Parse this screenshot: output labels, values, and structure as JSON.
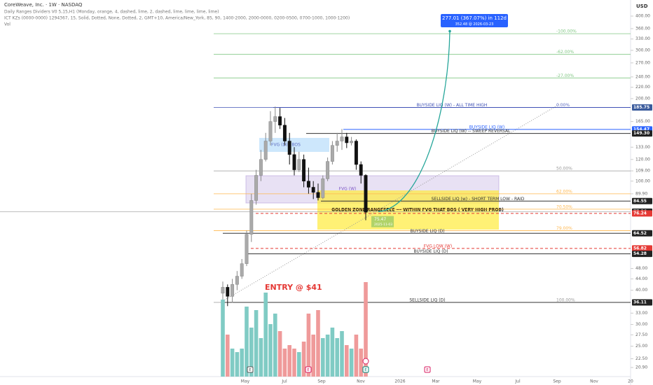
{
  "chart_data": {
    "type": "candlestick",
    "title": "CoreWeave, Inc. · 1W · NASDAQ",
    "indicators": [
      "Daily Ranges Dividers V0 5,15,H1 (Monday, orange, 4, dashed, lime, 2, dashed, lime, lime, lime, lime)",
      "ICT KZs (0000-0000) 1294367, 15, Solid, Dotted, None, Dotted, 2, GMT+10, America/New_York, 85, 90, 1400-2000, 2000-0000, 0200-0500, 0700-1000, 1000-1200)",
      "Vol"
    ],
    "currency": "USD",
    "log_scale": true,
    "ylim": [
      20.9,
      400
    ],
    "yticks": [
      {
        "value": 400,
        "label": "400.00"
      },
      {
        "value": 360,
        "label": "360.00"
      },
      {
        "value": 330,
        "label": "330.00"
      },
      {
        "value": 300,
        "label": "300.00"
      },
      {
        "value": 270,
        "label": "270.00"
      },
      {
        "value": 240,
        "label": "240.00"
      },
      {
        "value": 220,
        "label": "220.00"
      },
      {
        "value": 200,
        "label": "200.00"
      },
      {
        "value": 165,
        "label": "165.00"
      },
      {
        "value": 133,
        "label": "133.00"
      },
      {
        "value": 120,
        "label": "120.00"
      },
      {
        "value": 109,
        "label": "109.00"
      },
      {
        "value": 100,
        "label": "100.00"
      },
      {
        "value": 89.9,
        "label": "89.90"
      },
      {
        "value": 48,
        "label": "48.00"
      },
      {
        "value": 44,
        "label": "44.00"
      },
      {
        "value": 40,
        "label": "40.00"
      },
      {
        "value": 33,
        "label": "33.00"
      },
      {
        "value": 30,
        "label": "30.00"
      },
      {
        "value": 27.5,
        "label": "27.50"
      },
      {
        "value": 25,
        "label": "25.00"
      },
      {
        "value": 22.5,
        "label": "22.50"
      },
      {
        "value": 20.9,
        "label": "20.90"
      }
    ],
    "x_labels": [
      "May",
      "Jul",
      "Sep",
      "Nov",
      "2026",
      "Mar",
      "May",
      "Jul",
      "Sep",
      "Nov",
      "20"
    ],
    "open": [
      39,
      41,
      38,
      42,
      45,
      50,
      64,
      85,
      105,
      120,
      140,
      165,
      172,
      160,
      140,
      125,
      110,
      120,
      100,
      95,
      91,
      87,
      102,
      118,
      135,
      140,
      145,
      138,
      140,
      115,
      105
    ],
    "high": [
      43,
      42,
      44,
      47,
      52,
      66,
      90,
      110,
      130,
      150,
      180,
      187,
      185,
      170,
      150,
      133,
      128,
      125,
      112,
      100,
      98,
      105,
      122,
      140,
      150,
      155,
      150,
      145,
      142,
      118,
      106
    ],
    "low": [
      37,
      35,
      36,
      40,
      44,
      49,
      60,
      82,
      100,
      118,
      135,
      150,
      155,
      135,
      115,
      105,
      108,
      95,
      90,
      86,
      85,
      86,
      100,
      115,
      128,
      130,
      132,
      135,
      110,
      98,
      72
    ],
    "close": [
      41,
      38,
      42,
      45,
      50,
      64,
      85,
      105,
      120,
      140,
      165,
      172,
      160,
      140,
      125,
      110,
      120,
      100,
      95,
      91,
      87,
      102,
      118,
      135,
      140,
      145,
      138,
      140,
      115,
      105,
      77
    ],
    "volume": [
      110,
      60,
      40,
      35,
      40,
      100,
      70,
      95,
      55,
      120,
      75,
      90,
      65,
      40,
      45,
      40,
      35,
      50,
      90,
      60,
      95,
      55,
      60,
      70,
      55,
      65,
      45,
      40,
      60,
      40,
      135
    ],
    "levels": [
      {
        "label": "BUYSIDE LIQ (W) - ALL TIME HIGH",
        "price": {
          "value": 185.75,
          "label": "185.75"
        }
      },
      {
        "label": "BUYSIDE LIQ (W)",
        "price": {
          "value": 154.47,
          "label": "154.47"
        }
      },
      {
        "label": "BUYSIDE LIQ (W) -- SWEEP REVERSAL",
        "price": {
          "value": 149.3,
          "label": "149.30"
        }
      },
      {
        "label": "SELLSIDE LIQ (w) - SHORT TERM LOW - RAID",
        "price": {
          "value": 84.55,
          "label": "84.55"
        }
      },
      {
        "label": null,
        "price": {
          "value": 77.36,
          "label": "77.36"
        }
      },
      {
        "label": null,
        "price": {
          "value": 76.24,
          "label": "76.24"
        }
      },
      {
        "label": "BUYSIDE LIQ (D)",
        "price": {
          "value": 64.52,
          "label": "64.52"
        }
      },
      {
        "label": "FVG LOW (W)",
        "price": {
          "value": 56.82,
          "label": "56.82"
        }
      },
      {
        "label": "BUYSIDE LIQ (D)",
        "price": {
          "value": 54.28,
          "label": "54.28"
        }
      },
      {
        "label": "SELLSIDE LIQ (D)",
        "price": {
          "value": 36.11,
          "label": "36.11"
        }
      }
    ],
    "fib": [
      {
        "value": -100,
        "label": "-100.00%",
        "price": 345
      },
      {
        "value": -62,
        "label": "-62.00%",
        "price": 290
      },
      {
        "value": -27,
        "label": "-27.00%",
        "price": 238
      },
      {
        "value": 0,
        "label": "0.00%",
        "price": 185.75
      },
      {
        "value": 50,
        "label": "50.00%",
        "price": 109
      },
      {
        "value": 62,
        "label": "62.00%",
        "price": 89.9
      },
      {
        "value": 70.5,
        "label": "70.50%",
        "price": 79
      },
      {
        "value": 79,
        "label": "79.00%",
        "price": 66
      },
      {
        "value": 100,
        "label": "100.00%",
        "price": 36.11
      }
    ],
    "annotations": [
      "FVG (D) - BOS",
      "FVG (W)",
      "GOLDEN ZONE RANGEEEEE --- WITHIN FVG THAT BOS ( VERY HIGH PROB)",
      "ENTRY @ $41"
    ],
    "low_tag": {
      "price": 75.47,
      "date": "2025-11-03"
    },
    "target": {
      "text": "277.01 (367.07%) in 112d",
      "price": 352.48,
      "date": "2026-03-23"
    },
    "events": [
      "E",
      "E",
      "E",
      "E"
    ]
  }
}
